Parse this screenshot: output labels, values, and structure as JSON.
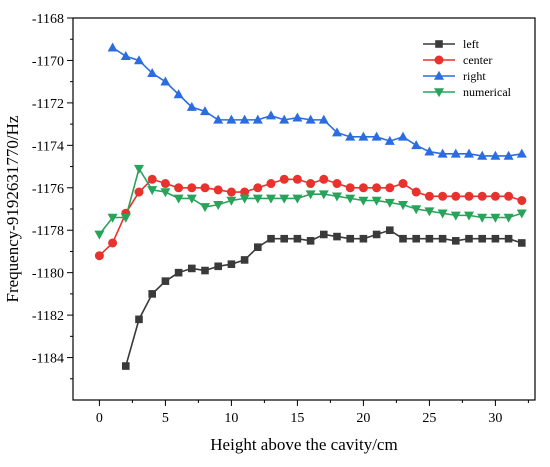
{
  "chart_data": {
    "type": "line",
    "title": "",
    "xlabel": "Height above the cavity/cm",
    "ylabel": "Frequency-9192631770/Hz",
    "xlim": [
      -2,
      33
    ],
    "ylim": [
      -1186,
      -1168
    ],
    "xticks": [
      0,
      5,
      10,
      15,
      20,
      25,
      30
    ],
    "yticks": [
      -1184,
      -1182,
      -1180,
      -1178,
      -1176,
      -1174,
      -1172,
      -1170,
      -1168
    ],
    "legend_position": "top-right",
    "grid": false,
    "series": [
      {
        "name": "left",
        "color": "#3a3a3a",
        "marker": "square",
        "x": [
          2,
          3,
          4,
          5,
          6,
          7,
          8,
          9,
          10,
          11,
          12,
          13,
          14,
          15,
          16,
          17,
          18,
          19,
          20,
          21,
          22,
          23,
          24,
          25,
          26,
          27,
          28,
          29,
          30,
          31,
          32
        ],
        "y": [
          -1184.4,
          -1182.2,
          -1181.0,
          -1180.4,
          -1180.0,
          -1179.8,
          -1179.9,
          -1179.7,
          -1179.6,
          -1179.4,
          -1178.8,
          -1178.4,
          -1178.4,
          -1178.4,
          -1178.5,
          -1178.2,
          -1178.3,
          -1178.4,
          -1178.4,
          -1178.2,
          -1178.0,
          -1178.4,
          -1178.4,
          -1178.4,
          -1178.4,
          -1178.5,
          -1178.4,
          -1178.4,
          -1178.4,
          -1178.4,
          -1178.6
        ]
      },
      {
        "name": "center",
        "color": "#e8322e",
        "marker": "circle",
        "x": [
          0,
          1,
          2,
          3,
          4,
          5,
          6,
          7,
          8,
          9,
          10,
          11,
          12,
          13,
          14,
          15,
          16,
          17,
          18,
          19,
          20,
          21,
          22,
          23,
          24,
          25,
          26,
          27,
          28,
          29,
          30,
          31,
          32
        ],
        "y": [
          -1179.2,
          -1178.6,
          -1177.2,
          -1176.2,
          -1175.6,
          -1175.8,
          -1176.0,
          -1176.0,
          -1176.0,
          -1176.1,
          -1176.2,
          -1176.2,
          -1176.0,
          -1175.8,
          -1175.6,
          -1175.6,
          -1175.8,
          -1175.6,
          -1175.8,
          -1176.0,
          -1176.0,
          -1176.0,
          -1176.0,
          -1175.8,
          -1176.2,
          -1176.4,
          -1176.4,
          -1176.4,
          -1176.4,
          -1176.4,
          -1176.4,
          -1176.4,
          -1176.6
        ]
      },
      {
        "name": "right",
        "color": "#2b6de0",
        "marker": "triangle-up",
        "x": [
          1,
          2,
          3,
          4,
          5,
          6,
          7,
          8,
          9,
          10,
          11,
          12,
          13,
          14,
          15,
          16,
          17,
          18,
          19,
          20,
          21,
          22,
          23,
          24,
          25,
          26,
          27,
          28,
          29,
          30,
          31,
          32
        ],
        "y": [
          -1169.4,
          -1169.8,
          -1170.0,
          -1170.6,
          -1171.0,
          -1171.6,
          -1172.2,
          -1172.4,
          -1172.8,
          -1172.8,
          -1172.8,
          -1172.8,
          -1172.6,
          -1172.8,
          -1172.7,
          -1172.8,
          -1172.8,
          -1173.4,
          -1173.6,
          -1173.6,
          -1173.6,
          -1173.8,
          -1173.6,
          -1174.0,
          -1174.3,
          -1174.4,
          -1174.4,
          -1174.4,
          -1174.5,
          -1174.5,
          -1174.5,
          -1174.4
        ]
      },
      {
        "name": "numerical",
        "color": "#27a35a",
        "marker": "triangle-down",
        "x": [
          0,
          1,
          2,
          3,
          4,
          5,
          6,
          7,
          8,
          9,
          10,
          11,
          12,
          13,
          14,
          15,
          16,
          17,
          18,
          19,
          20,
          21,
          22,
          23,
          24,
          25,
          26,
          27,
          28,
          29,
          30,
          31,
          32
        ],
        "y": [
          -1178.2,
          -1177.4,
          -1177.4,
          -1175.1,
          -1176.1,
          -1176.2,
          -1176.5,
          -1176.5,
          -1176.9,
          -1176.8,
          -1176.6,
          -1176.5,
          -1176.5,
          -1176.5,
          -1176.5,
          -1176.5,
          -1176.3,
          -1176.3,
          -1176.4,
          -1176.5,
          -1176.6,
          -1176.6,
          -1176.7,
          -1176.8,
          -1177.0,
          -1177.1,
          -1177.2,
          -1177.3,
          -1177.3,
          -1177.4,
          -1177.4,
          -1177.4,
          -1177.2
        ]
      }
    ]
  }
}
